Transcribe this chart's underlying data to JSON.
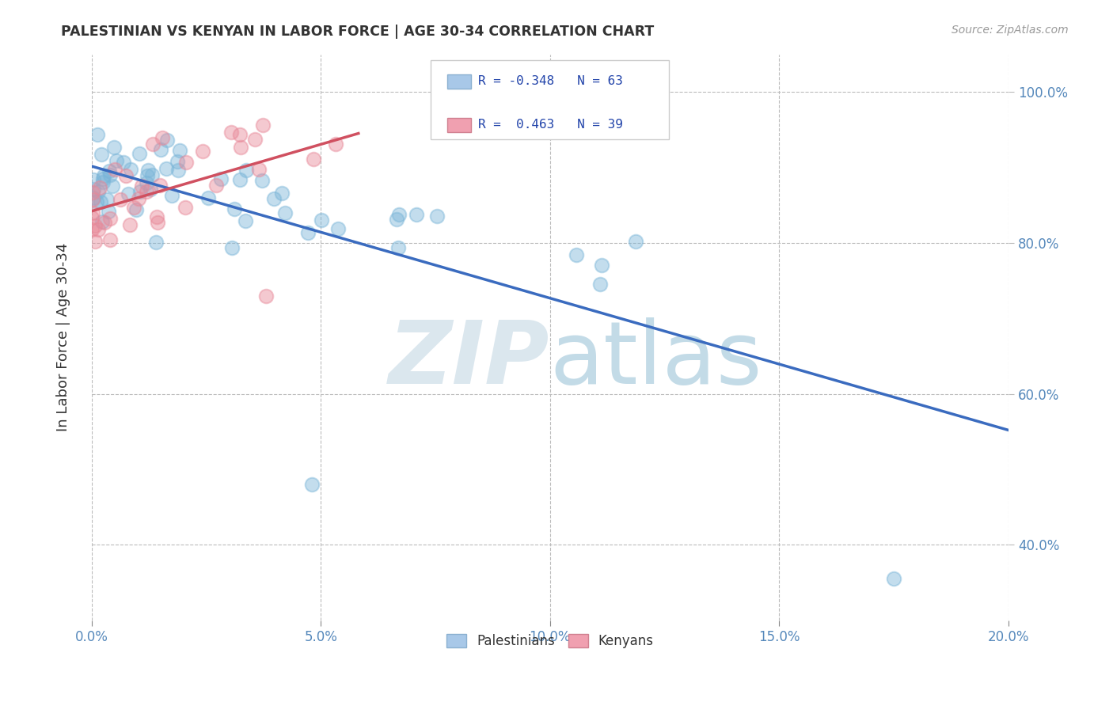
{
  "title": "PALESTINIAN VS KENYAN IN LABOR FORCE | AGE 30-34 CORRELATION CHART",
  "source": "Source: ZipAtlas.com",
  "ylabel_text": "In Labor Force | Age 30-34",
  "xlim": [
    0.0,
    0.2
  ],
  "ylim": [
    0.3,
    1.05
  ],
  "xtick_vals": [
    0.0,
    0.05,
    0.1,
    0.15,
    0.2
  ],
  "xtick_labels": [
    "0.0%",
    "5.0%",
    "10.0%",
    "15.0%",
    "20.0%"
  ],
  "ytick_vals": [
    0.4,
    0.6,
    0.8,
    1.0
  ],
  "ytick_labels": [
    "40.0%",
    "60.0%",
    "80.0%",
    "100.0%"
  ],
  "r_palestinian": -0.348,
  "n_palestinian": 63,
  "r_kenyan": 0.463,
  "n_kenyan": 39,
  "palestinian_color": "#7ab5d8",
  "kenyan_color": "#e88898",
  "line_color_palestinian": "#3a6bbf",
  "line_color_kenyan": "#d05060",
  "background_color": "#ffffff",
  "grid_color": "#bbbbbb",
  "title_color": "#333333",
  "tick_label_color": "#5588bb",
  "ylabel_color": "#333333",
  "source_color": "#999999",
  "watermark_zip_color": "#ccdde8",
  "watermark_atlas_color": "#aaccdd"
}
